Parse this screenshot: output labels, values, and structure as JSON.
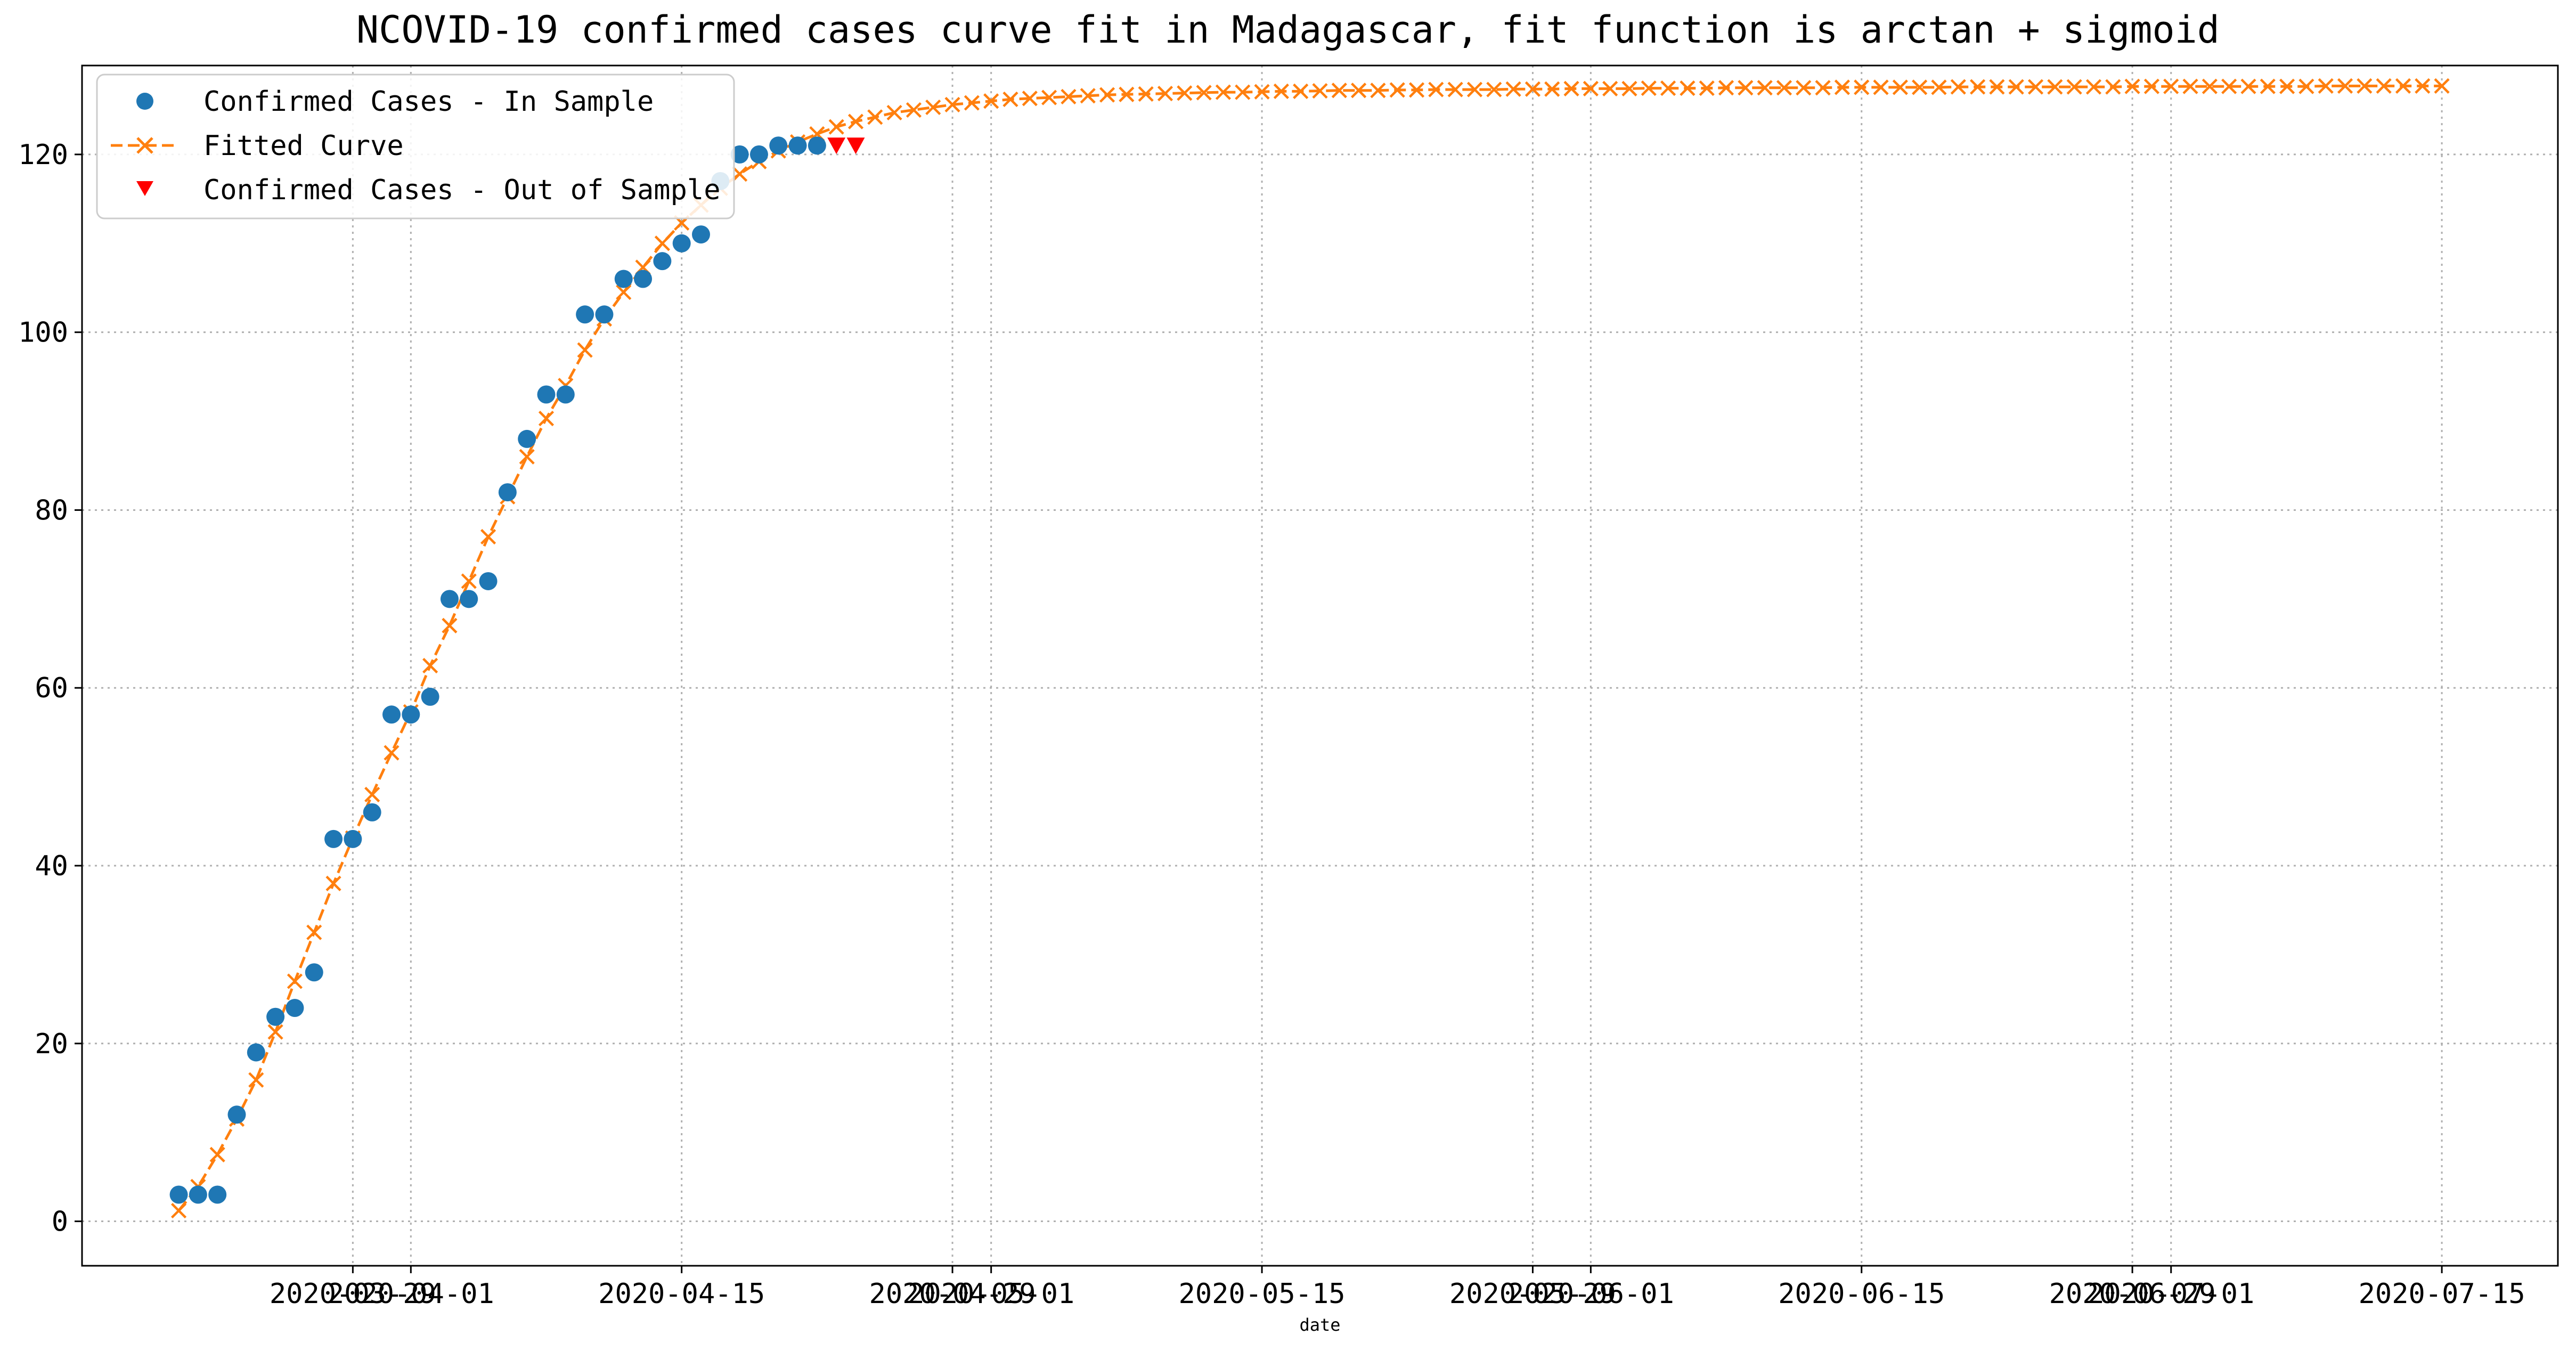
{
  "chart_data": {
    "type": "line",
    "title": "NCOVID-19 confirmed cases curve fit in Madagascar, fit function is arctan + sigmoid",
    "xlabel": "date",
    "ylabel": "",
    "ylim": [
      -5,
      130
    ],
    "xlim": [
      "2020-03-15",
      "2020-07-21"
    ],
    "grid": true,
    "legend_position": "top-left",
    "x_ticks": [
      "2020-03-29",
      "2020-04-01",
      "2020-04-15",
      "2020-04-29",
      "2020-05-01",
      "2020-05-15",
      "2020-05-29",
      "2020-06-01",
      "2020-06-15",
      "2020-06-29",
      "2020-07-01",
      "2020-07-15"
    ],
    "y_ticks": [
      0,
      20,
      40,
      60,
      80,
      100,
      120
    ],
    "series": [
      {
        "name": "Confirmed Cases - In Sample",
        "marker": "circle",
        "color": "#1f77b4",
        "x": [
          "2020-03-20",
          "2020-03-21",
          "2020-03-22",
          "2020-03-23",
          "2020-03-24",
          "2020-03-25",
          "2020-03-26",
          "2020-03-27",
          "2020-03-28",
          "2020-03-29",
          "2020-03-30",
          "2020-03-31",
          "2020-04-01",
          "2020-04-02",
          "2020-04-03",
          "2020-04-04",
          "2020-04-05",
          "2020-04-06",
          "2020-04-07",
          "2020-04-08",
          "2020-04-09",
          "2020-04-10",
          "2020-04-11",
          "2020-04-12",
          "2020-04-13",
          "2020-04-14",
          "2020-04-15",
          "2020-04-16",
          "2020-04-17",
          "2020-04-18",
          "2020-04-19",
          "2020-04-20",
          "2020-04-21",
          "2020-04-22"
        ],
        "values": [
          3,
          3,
          3,
          12,
          19,
          23,
          24,
          28,
          43,
          43,
          46,
          57,
          57,
          59,
          70,
          70,
          72,
          82,
          88,
          93,
          93,
          102,
          102,
          106,
          106,
          108,
          110,
          111,
          117,
          120,
          120,
          121,
          121,
          121
        ]
      },
      {
        "name": "Fitted Curve",
        "marker": "x",
        "line": "dashed",
        "color": "#ff7f0e",
        "start_date": "2020-03-20",
        "values": [
          1.2,
          3.9,
          7.5,
          11.5,
          15.9,
          21.3,
          27.0,
          32.5,
          38.0,
          43.1,
          48.0,
          52.7,
          57.3,
          62.5,
          67.0,
          72.0,
          77.0,
          81.5,
          86.0,
          90.3,
          94.0,
          98.0,
          101.5,
          104.5,
          107.3,
          110.0,
          112.3,
          114.3,
          116.2,
          117.8,
          119.2,
          120.4,
          121.4,
          122.3,
          123.1,
          123.7,
          124.2,
          124.7,
          125.0,
          125.3,
          125.6,
          125.8,
          126.0,
          126.2,
          126.3,
          126.4,
          126.5,
          126.6,
          126.7,
          126.75,
          126.8,
          126.85,
          126.9,
          126.95,
          127.0,
          127.0,
          127.05,
          127.1,
          127.1,
          127.15,
          127.2,
          127.2,
          127.2,
          127.25,
          127.25,
          127.3,
          127.3,
          127.3,
          127.3,
          127.35,
          127.35,
          127.35,
          127.4,
          127.4,
          127.4,
          127.4,
          127.45,
          127.45,
          127.45,
          127.45,
          127.5,
          127.5,
          127.5,
          127.5,
          127.5,
          127.5,
          127.55,
          127.55,
          127.55,
          127.55,
          127.55,
          127.55,
          127.6,
          127.6,
          127.6,
          127.6,
          127.6,
          127.6,
          127.6,
          127.6,
          127.6,
          127.65,
          127.65,
          127.65,
          127.65,
          127.65,
          127.65,
          127.65,
          127.65,
          127.65,
          127.65,
          127.7,
          127.7,
          127.7,
          127.7,
          127.7,
          127.7,
          127.7
        ]
      },
      {
        "name": "Confirmed Cases - Out of Sample",
        "marker": "triangle-down",
        "color": "#ff0000",
        "x": [
          "2020-04-23",
          "2020-04-24"
        ],
        "values": [
          121,
          121
        ]
      }
    ]
  }
}
